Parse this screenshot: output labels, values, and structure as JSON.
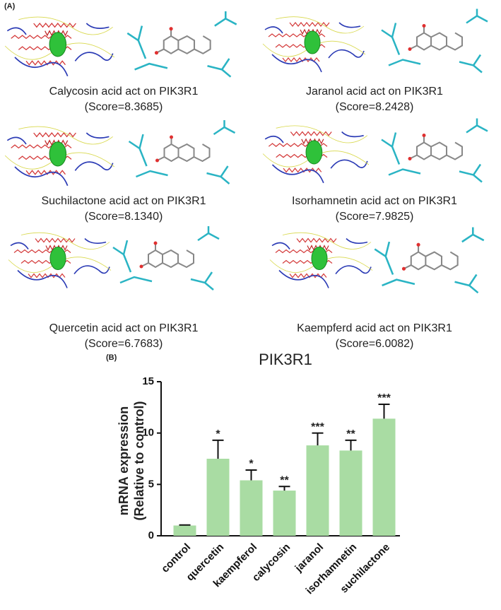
{
  "panel_a": {
    "label": "(A)",
    "items": [
      {
        "caption": "Calycosin acid act on PIK3R1",
        "score": "(Score=8.3685)"
      },
      {
        "caption": "Jaranol acid act on PIK3R1",
        "score": "(Score=8.2428)"
      },
      {
        "caption": "Suchilactone acid act on PIK3R1",
        "score": "(Score=8.1340)"
      },
      {
        "caption": "Isorhamnetin acid act on PIK3R1",
        "score": "(Score=7.9825)"
      },
      {
        "caption": "Quercetin acid act on PIK3R1",
        "score": "(Score=6.7683)"
      },
      {
        "caption": "Kaempferd acid act on PIK3R1",
        "score": "(Score=6.0082)"
      }
    ]
  },
  "chart_data": {
    "type": "bar",
    "panel_label": "(B)",
    "title": "PIK3R1",
    "ylabel": [
      "mRNA expression",
      "(Relative to control)"
    ],
    "categories": [
      "control",
      "quercetin",
      "kaempferol",
      "calycosin",
      "jaranol",
      "isorhamnetin",
      "suchilactone"
    ],
    "values": [
      1.0,
      7.5,
      5.4,
      4.4,
      8.8,
      8.3,
      11.4
    ],
    "errors": [
      0.05,
      1.8,
      1.0,
      0.4,
      1.2,
      1.0,
      1.4
    ],
    "significance": [
      null,
      "*",
      "*",
      "**",
      "***",
      "**",
      "***"
    ],
    "color": "#a9dca3",
    "ylim": [
      0,
      15
    ],
    "yticks": [
      0,
      5,
      10,
      15
    ]
  }
}
